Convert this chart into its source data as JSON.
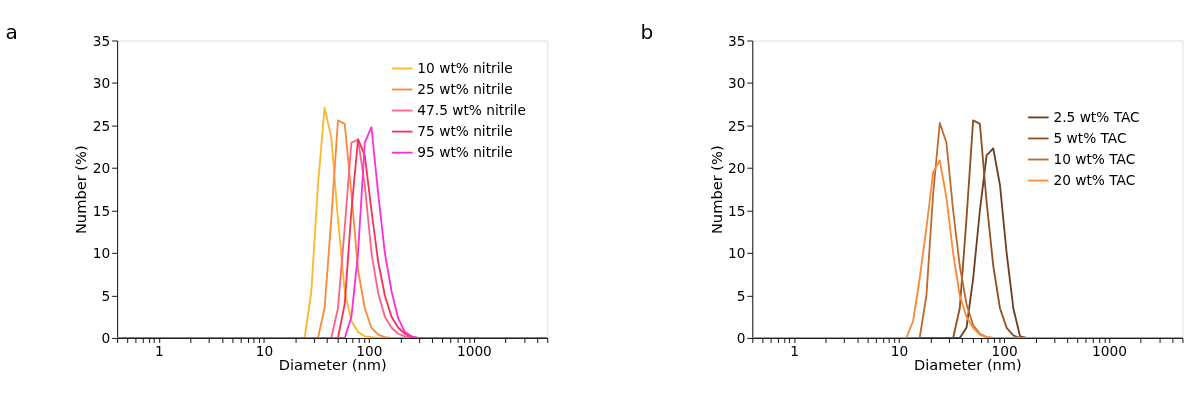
{
  "chart_data": [
    {
      "type": "line",
      "title": "a",
      "xlabel": "Diameter (nm)",
      "ylabel": "Number (%)",
      "log": "x",
      "grid": false,
      "legend": "top right",
      "line_style": "solid",
      "marker": "none",
      "xlim": [
        0.4,
        5000
      ],
      "ylim": [
        0,
        35
      ],
      "yticks": [
        0,
        5,
        10,
        15,
        20,
        25,
        30,
        35
      ],
      "xticks": [
        {
          "value": 0.4,
          "label": null
        },
        {
          "value": 0.5,
          "label": null
        },
        {
          "value": 0.6,
          "label": null
        },
        {
          "value": 0.7,
          "label": null
        },
        {
          "value": 0.8,
          "label": null
        },
        {
          "value": 0.9,
          "label": null
        },
        1,
        {
          "value": 2,
          "label": null
        },
        {
          "value": 3,
          "label": null
        },
        {
          "value": 4,
          "label": null
        },
        {
          "value": 5,
          "label": null
        },
        {
          "value": 6,
          "label": null
        },
        {
          "value": 7,
          "label": null
        },
        {
          "value": 8,
          "label": null
        },
        {
          "value": 9,
          "label": null
        },
        10,
        {
          "value": 20,
          "label": null
        },
        {
          "value": 30,
          "label": null
        },
        {
          "value": 40,
          "label": null
        },
        {
          "value": 50,
          "label": null
        },
        {
          "value": 60,
          "label": null
        },
        {
          "value": 70,
          "label": null
        },
        {
          "value": 80,
          "label": null
        },
        {
          "value": 90,
          "label": null
        },
        100,
        {
          "value": 200,
          "label": null
        },
        {
          "value": 300,
          "label": null
        },
        {
          "value": 400,
          "label": null
        },
        {
          "value": 500,
          "label": null
        },
        {
          "value": 600,
          "label": null
        },
        {
          "value": 700,
          "label": null
        },
        {
          "value": 800,
          "label": null
        },
        {
          "value": 900,
          "label": null
        },
        1000,
        {
          "value": 2000,
          "label": null
        },
        {
          "value": 3000,
          "label": null
        },
        {
          "value": 4000,
          "label": null
        },
        {
          "value": 5000,
          "label": null
        }
      ],
      "series": [
        {
          "name": "10 wt%   nitrile",
          "color": "#fbb829",
          "x": [
            0.4,
            24.4,
            28.2,
            32.7,
            37.8,
            43.8,
            50.7,
            58.8,
            68.1,
            78.8,
            91.3,
            105.7,
            122.4,
            5000
          ],
          "values": [
            0,
            0,
            5.3,
            18,
            27.1,
            23.6,
            14,
            5.5,
            2,
            0.7,
            0.2,
            0.1,
            0,
            0
          ]
        },
        {
          "name": "25 wt%   nitrile",
          "color": "#f98a3a",
          "x": [
            0.4,
            32.7,
            37.8,
            43.8,
            50.7,
            58.8,
            68.1,
            78.8,
            91.3,
            105.7,
            122.4,
            141.8,
            164.2,
            5000
          ],
          "values": [
            0,
            0,
            3.5,
            14,
            25.6,
            25.2,
            17,
            8,
            3.5,
            1.2,
            0.4,
            0.1,
            0,
            0
          ]
        },
        {
          "name": "47.5 wt%  nitrile",
          "color": "#fa6487",
          "x": [
            0.4,
            43.8,
            50.7,
            58.8,
            68.1,
            78.8,
            91.3,
            105.7,
            122.4,
            141.8,
            164.2,
            190.1,
            220.2,
            255,
            5000
          ],
          "values": [
            0,
            0,
            3.5,
            13,
            23,
            23.3,
            18,
            10,
            5.3,
            2.5,
            1.2,
            0.5,
            0.2,
            0,
            0
          ]
        },
        {
          "name": "75 wt%   nitrile",
          "color": "#f7315a",
          "x": [
            0.4,
            50.7,
            58.8,
            68.1,
            78.8,
            91.3,
            105.7,
            122.4,
            141.8,
            164.2,
            190.1,
            220.2,
            255,
            295.3,
            5000
          ],
          "values": [
            0,
            0,
            4,
            15,
            23.4,
            21.5,
            15,
            9,
            5,
            2.5,
            1.2,
            0.5,
            0.1,
            0,
            0
          ]
        },
        {
          "name": "95 wt%   nitrile",
          "color": "#fc2fd8",
          "x": [
            0.4,
            58.8,
            68.1,
            78.8,
            91.3,
            105.7,
            122.4,
            141.8,
            164.2,
            190.1,
            220.2,
            255,
            295.3,
            5000
          ],
          "values": [
            0,
            0,
            2.5,
            10,
            23,
            24.8,
            17,
            10,
            5.5,
            2.3,
            0.7,
            0.2,
            0,
            0
          ]
        }
      ]
    },
    {
      "type": "line",
      "title": "b",
      "xlabel": "Diameter (nm)",
      "ylabel": "Number (%)",
      "log": "x",
      "grid": false,
      "legend": "right",
      "line_style": "solid",
      "marker": "none",
      "xlim": [
        0.4,
        5000
      ],
      "ylim": [
        0,
        35
      ],
      "yticks": [
        0,
        5,
        10,
        15,
        20,
        25,
        30,
        35
      ],
      "xticks": [
        {
          "value": 0.4,
          "label": null
        },
        {
          "value": 0.5,
          "label": null
        },
        {
          "value": 0.6,
          "label": null
        },
        {
          "value": 0.7,
          "label": null
        },
        {
          "value": 0.8,
          "label": null
        },
        {
          "value": 0.9,
          "label": null
        },
        1,
        {
          "value": 2,
          "label": null
        },
        {
          "value": 3,
          "label": null
        },
        {
          "value": 4,
          "label": null
        },
        {
          "value": 5,
          "label": null
        },
        {
          "value": 6,
          "label": null
        },
        {
          "value": 7,
          "label": null
        },
        {
          "value": 8,
          "label": null
        },
        {
          "value": 9,
          "label": null
        },
        10,
        {
          "value": 20,
          "label": null
        },
        {
          "value": 30,
          "label": null
        },
        {
          "value": 40,
          "label": null
        },
        {
          "value": 50,
          "label": null
        },
        {
          "value": 60,
          "label": null
        },
        {
          "value": 70,
          "label": null
        },
        {
          "value": 80,
          "label": null
        },
        {
          "value": 90,
          "label": null
        },
        100,
        {
          "value": 200,
          "label": null
        },
        {
          "value": 300,
          "label": null
        },
        {
          "value": 400,
          "label": null
        },
        {
          "value": 500,
          "label": null
        },
        {
          "value": 600,
          "label": null
        },
        {
          "value": 700,
          "label": null
        },
        {
          "value": 800,
          "label": null
        },
        {
          "value": 900,
          "label": null
        },
        1000,
        {
          "value": 2000,
          "label": null
        },
        {
          "value": 3000,
          "label": null
        },
        {
          "value": 4000,
          "label": null
        },
        {
          "value": 5000,
          "label": null
        }
      ],
      "series": [
        {
          "name": "2.5 wt%   TAC",
          "color": "#6b3f1f",
          "x": [
            0.4,
            37.8,
            43.8,
            50.7,
            58.8,
            68.1,
            78.8,
            91.3,
            105.7,
            122.4,
            141.8,
            164.2,
            5000
          ],
          "values": [
            0,
            0,
            1.2,
            7,
            15,
            21.5,
            22.3,
            18,
            10,
            3.5,
            0.2,
            0,
            0
          ]
        },
        {
          "name": "5 wt%       TAC",
          "color": "#91501f",
          "x": [
            0.4,
            32.7,
            37.8,
            43.8,
            50.7,
            58.8,
            68.1,
            78.8,
            91.3,
            105.7,
            122.4,
            141.8,
            5000
          ],
          "values": [
            0,
            0,
            3.5,
            14,
            25.6,
            25.2,
            16,
            8.5,
            3.5,
            1.2,
            0.3,
            0,
            0
          ]
        },
        {
          "name": "10 wt%     TAC",
          "color": "#c06a2c",
          "x": [
            0.4,
            15.7,
            18.2,
            21.1,
            24.4,
            28.2,
            32.7,
            37.8,
            43.8,
            50.7,
            58.8,
            68.1,
            78.8,
            5000
          ],
          "values": [
            0,
            0,
            5,
            17,
            25.3,
            23,
            15,
            8.5,
            4,
            1.5,
            0.5,
            0.1,
            0,
            0
          ]
        },
        {
          "name": "20 wt%     TAC",
          "color": "#f78b3a",
          "x": [
            0.4,
            11.7,
            13.6,
            15.7,
            18.2,
            21.1,
            24.4,
            28.2,
            32.7,
            37.8,
            43.8,
            50.7,
            58.8,
            68.1,
            78.8,
            5000
          ],
          "values": [
            0,
            0,
            2,
            7,
            13,
            19.5,
            20.9,
            16.5,
            10,
            5,
            2.5,
            1.2,
            0.4,
            0.1,
            0,
            0
          ]
        }
      ]
    }
  ]
}
